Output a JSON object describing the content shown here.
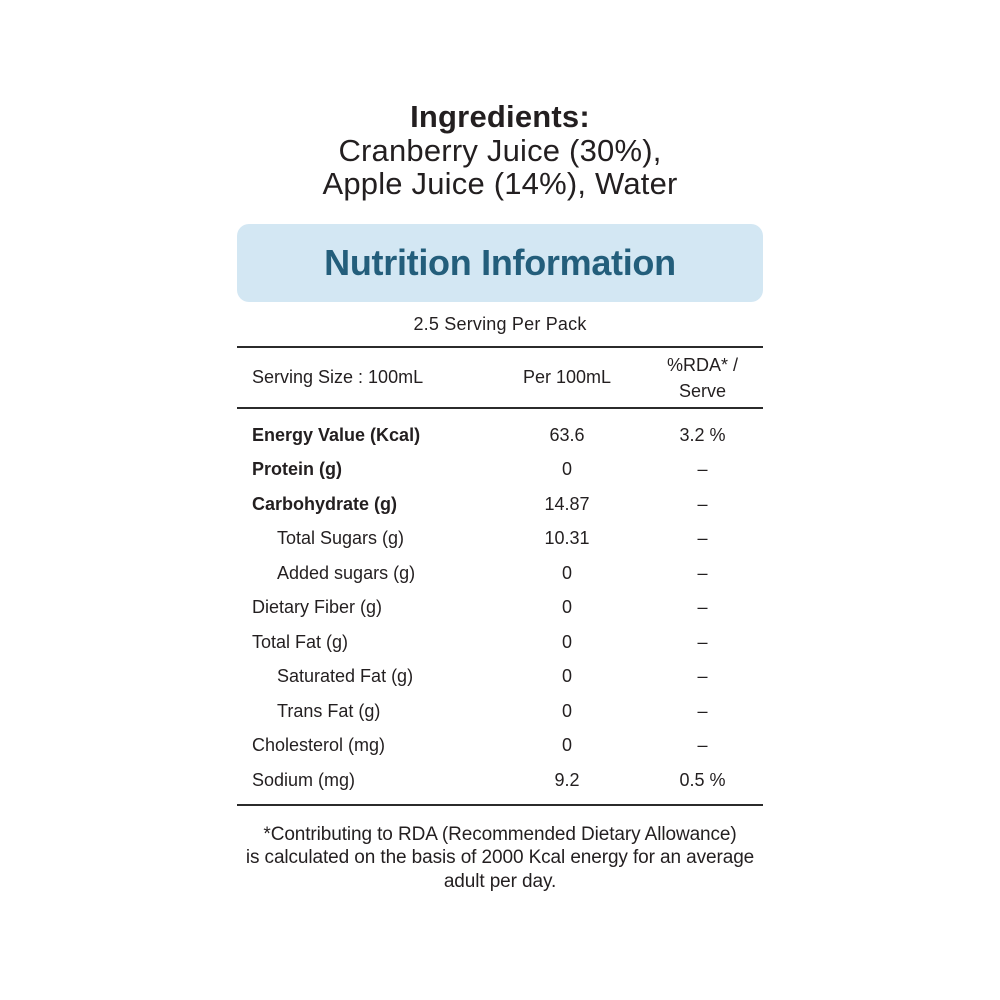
{
  "ingredients": {
    "heading": "Ingredients:",
    "lines": [
      "Cranberry Juice (30%),",
      "Apple Juice (14%), Water"
    ]
  },
  "nutrition": {
    "banner_title": "Nutrition Information",
    "servings_text": "2.5 Serving Per Pack",
    "columns": {
      "serving_size": "Serving Size : 100mL",
      "per_amount": "Per 100mL",
      "rda_line1": "%RDA* /",
      "rda_line2": "Serve"
    },
    "rows": [
      {
        "label": "Energy Value (Kcal)",
        "per_100ml": "63.6",
        "rda": "3.2 %",
        "bold": true,
        "indent": false
      },
      {
        "label": "Protein (g)",
        "per_100ml": "0",
        "rda": "–",
        "bold": true,
        "indent": false
      },
      {
        "label": "Carbohydrate (g)",
        "per_100ml": "14.87",
        "rda": "–",
        "bold": true,
        "indent": false
      },
      {
        "label": "Total Sugars (g)",
        "per_100ml": "10.31",
        "rda": "–",
        "bold": false,
        "indent": true
      },
      {
        "label": "Added sugars (g)",
        "per_100ml": "0",
        "rda": "–",
        "bold": false,
        "indent": true
      },
      {
        "label": "Dietary Fiber (g)",
        "per_100ml": "0",
        "rda": "–",
        "bold": false,
        "indent": false
      },
      {
        "label": "Total Fat (g)",
        "per_100ml": "0",
        "rda": "–",
        "bold": false,
        "indent": false
      },
      {
        "label": "Saturated Fat (g)",
        "per_100ml": "0",
        "rda": "–",
        "bold": false,
        "indent": true
      },
      {
        "label": "Trans Fat (g)",
        "per_100ml": "0",
        "rda": "–",
        "bold": false,
        "indent": true
      },
      {
        "label": "Cholesterol (mg)",
        "per_100ml": "0",
        "rda": "–",
        "bold": false,
        "indent": false
      },
      {
        "label": "Sodium (mg)",
        "per_100ml": "9.2",
        "rda": "0.5 %",
        "bold": false,
        "indent": false
      }
    ],
    "footnote_lines": [
      "*Contributing to RDA (Recommended Dietary Allowance)",
      "is calculated on the basis of 2000 Kcal energy for an average",
      "adult per day."
    ]
  },
  "colors": {
    "banner_bg": "#d3e7f3",
    "banner_text": "#235e7b",
    "text": "#231f20",
    "rule": "#2b2b2b"
  }
}
